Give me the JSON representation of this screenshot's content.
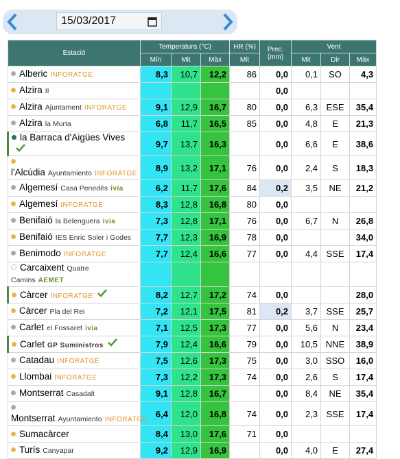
{
  "header": {
    "date": "15/03/2017"
  },
  "table": {
    "columns": {
      "station": "Estació",
      "temperature": "Temperatura (°C)",
      "humidity": "HR (%)",
      "precipitation": "Prec. (mm)",
      "wind": "Vent"
    },
    "subcolumns": [
      "Mín",
      "Mit",
      "Màx",
      "Mit",
      "Mit",
      "Dir",
      "Màx"
    ],
    "rows": [
      {
        "station": {
          "name": "Alberic",
          "tag": "INFORATGE",
          "dot": "#aaaaaa"
        },
        "cells": [
          "8,3",
          "10,7",
          "12,2",
          "86",
          "0,0",
          "0,1",
          "SO",
          "4,3"
        ]
      },
      {
        "station": {
          "name": "Alzira",
          "sub": "II",
          "dot": "#e8b450"
        },
        "cells": [
          null,
          null,
          null,
          null,
          "0,0",
          null,
          null,
          null
        ]
      },
      {
        "station": {
          "name": "Alzira",
          "sub": "Ajuntament",
          "tag": "INFORATGE",
          "dot": "#e8b450"
        },
        "cells": [
          "9,1",
          "12,9",
          "16,7",
          "80",
          "0,0",
          "6,3",
          "ESE",
          "35,4"
        ]
      },
      {
        "station": {
          "name": "Alzira",
          "sub": "la Murta",
          "dot": "#aaaaaa"
        },
        "cells": [
          "6,8",
          "11,7",
          "16,5",
          "85",
          "0,0",
          "4,8",
          "E",
          "21,3"
        ]
      },
      {
        "station": {
          "name": "la Barraca d'Aigües Vives",
          "dot": "#2d6b62",
          "verified": true
        },
        "cells": [
          "9,7",
          "13,7",
          "16,3",
          null,
          "0,0",
          "6,6",
          "E",
          "38,6"
        ]
      },
      {
        "station": {
          "name": "l'Alcúdia",
          "sub": "Ayuntamiento",
          "tag": "INFORATGE",
          "dot": "#e8b450"
        },
        "cells": [
          "8,9",
          "13,2",
          "17,1",
          "76",
          "0,0",
          "2,4",
          "S",
          "18,3"
        ]
      },
      {
        "station": {
          "name": "Algemesí",
          "sub": "Casa Penedés",
          "tag": "ivia",
          "dot": "#aaaaaa"
        },
        "cells": [
          "6,2",
          "11,7",
          "17,6",
          "84",
          "0,2",
          "3,5",
          "NE",
          "21,2"
        ]
      },
      {
        "station": {
          "name": "Algemesí",
          "tag": "INFORATGE",
          "dot": "#e8b450"
        },
        "cells": [
          "8,3",
          "12,8",
          "16,8",
          "80",
          "0,0",
          null,
          null,
          null
        ]
      },
      {
        "station": {
          "name": "Benifaió",
          "sub": "la Belenguera",
          "tag": "ivia",
          "dot": "#aaaaaa"
        },
        "cells": [
          "7,3",
          "12,8",
          "17,1",
          "76",
          "0,0",
          "6,7",
          "N",
          "26,8"
        ]
      },
      {
        "station": {
          "name": "Benifaió",
          "sub": "IES Enric Soler i Godes",
          "dot": "#e8b450"
        },
        "cells": [
          "7,7",
          "12,3",
          "16,9",
          "78",
          "0,0",
          null,
          null,
          "34,0"
        ]
      },
      {
        "station": {
          "name": "Benimodo",
          "tag": "INFORATGE",
          "dot": "#aaaaaa"
        },
        "cells": [
          "7,7",
          "12,4",
          "16,6",
          "77",
          "0,0",
          "4,4",
          "SSE",
          "17,4"
        ]
      },
      {
        "station": {
          "name": "Carcaixent",
          "sub": "Quatre Camins",
          "tag": "AEMET",
          "dot": "none"
        },
        "cells": [
          null,
          null,
          null,
          null,
          null,
          null,
          null,
          null
        ]
      },
      {
        "station": {
          "name": "Càrcer",
          "tag": "INFORATGE",
          "dot": "#e8b450",
          "verified": true
        },
        "cells": [
          "8,2",
          "12,7",
          "17,2",
          "74",
          "0,0",
          null,
          null,
          "28,0"
        ]
      },
      {
        "station": {
          "name": "Càrcer",
          "sub": "Pla del Rei",
          "dot": "#e8b450"
        },
        "cells": [
          "7,2",
          "12,1",
          "17,5",
          "81",
          "0,2",
          "3,7",
          "SSE",
          "25,7"
        ]
      },
      {
        "station": {
          "name": "Carlet",
          "sub": "el Fossaret",
          "tag": "ivia",
          "dot": "#aaaaaa"
        },
        "cells": [
          "7,1",
          "12,5",
          "17,3",
          "77",
          "0,0",
          "5,6",
          "N",
          "23,4"
        ]
      },
      {
        "station": {
          "name": "Carlet",
          "tag": "GP Suministros",
          "dot": "#e8b450",
          "verified": true
        },
        "cells": [
          "7,9",
          "12,4",
          "16,6",
          "79",
          "0,0",
          "10,5",
          "NNE",
          "38,9"
        ]
      },
      {
        "station": {
          "name": "Catadau",
          "tag": "INFORATGE",
          "dot": "#aaaaaa"
        },
        "cells": [
          "7,5",
          "12,6",
          "17,3",
          "75",
          "0,0",
          "3,0",
          "SSO",
          "16,0"
        ]
      },
      {
        "station": {
          "name": "Llombai",
          "tag": "INFORATGE",
          "dot": "#e8b450"
        },
        "cells": [
          "7,3",
          "12,2",
          "17,3",
          "74",
          "0,0",
          "2,6",
          "S",
          "17,4"
        ]
      },
      {
        "station": {
          "name": "Montserrat",
          "sub": "Casadalt",
          "dot": "#aaaaaa"
        },
        "cells": [
          "9,1",
          "12,8",
          "16,7",
          null,
          "0,0",
          "8,4",
          "NE",
          "35,4"
        ]
      },
      {
        "station": {
          "name": "Montserrat",
          "sub": "Ayuntamiento",
          "tag": "INFORATGE",
          "dot": "#aaaaaa"
        },
        "cells": [
          "6,4",
          "12,0",
          "16,8",
          "74",
          "0,0",
          "2,3",
          "SSE",
          "17,4"
        ]
      },
      {
        "station": {
          "name": "Sumacàrcer",
          "dot": "#e8b450"
        },
        "cells": [
          "8,4",
          "13,0",
          "17,6",
          "71",
          "0,0",
          null,
          null,
          null
        ]
      },
      {
        "station": {
          "name": "Turís",
          "sub": "Canyapar",
          "dot": "#e8b450"
        },
        "cells": [
          "9,2",
          "12,9",
          "16,9",
          null,
          "0,0",
          "4,0",
          "E",
          "27,4"
        ]
      }
    ]
  }
}
